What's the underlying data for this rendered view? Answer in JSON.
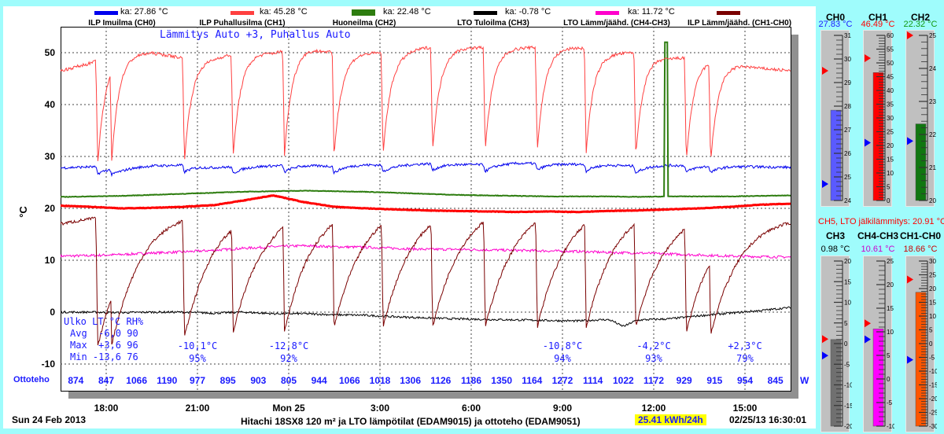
{
  "legend": [
    {
      "name": "ILP Imuilma (CH0)",
      "avg": "ka: 27.86 °C",
      "color": "#0000ee"
    },
    {
      "name": "ILP Puhallusilma (CH1)",
      "avg": "ka: 45.28 °C",
      "color": "#ff4040"
    },
    {
      "name": "Huoneilma (CH2)",
      "avg": "ka: 22.48 °C",
      "color": "#2e7d10"
    },
    {
      "name": "LTO Tuloilma (CH3)",
      "avg": "ka: -0.78 °C",
      "color": "#000000"
    },
    {
      "name": "LTO Lämm/jäähd. (CH4-CH3)",
      "avg": "ka: 11.72 °C",
      "color": "#ff00cc"
    },
    {
      "name": "ILP Lämm/jäähd. (CH1-CH0)",
      "avg": "",
      "color": "#7a0000"
    }
  ],
  "mode_text": "Lämmitys Auto +3, Puhallus Auto",
  "outdoor_stats": {
    "header": "Ulko LT °C RH%",
    "avg": "Avg  -6,0 90",
    "max": "Max  +3,6 96",
    "min": "Min -13,6 76"
  },
  "weather_notes": [
    {
      "hour": 4.5,
      "temp": "-10,1°C",
      "rh": "95%"
    },
    {
      "hour": 7.5,
      "temp": "-12,8°C",
      "rh": "92%"
    },
    {
      "hour": 16.5,
      "temp": "-10,8°C",
      "rh": "94%"
    },
    {
      "hour": 19.5,
      "temp": "-4,2°C",
      "rh": "93%"
    },
    {
      "hour": 22.5,
      "temp": "+2,3°C",
      "rh": "79%"
    }
  ],
  "ottoteho": {
    "label": "Ottoteho",
    "unit": "W",
    "values": [
      "874",
      "847",
      "1066",
      "1190",
      "977",
      "895",
      "903",
      "805",
      "944",
      "1066",
      "1018",
      "1306",
      "1126",
      "1186",
      "1350",
      "1164",
      "1272",
      "1114",
      "1022",
      "1172",
      "929",
      "915",
      "954",
      "845"
    ]
  },
  "footer": {
    "date": "Sun 24 Feb 2013",
    "title": "Hitachi 18SX8 120 m² ja LTO lämpötilat (EDAM9015) ja ottoteho (EDAM9051)",
    "energy": "25.41 kWh/24h",
    "timestamp": "02/25/13 16:30:01"
  },
  "chart_data": {
    "type": "line",
    "ylabel": "°C",
    "ylim": [
      -15,
      55
    ],
    "yticks": [
      "50",
      "40",
      "30",
      "20",
      "10",
      "0",
      "-10"
    ],
    "ytick_values": [
      50,
      40,
      30,
      20,
      10,
      0,
      -10
    ],
    "xlim_hours_from_1630": [
      0,
      24
    ],
    "xticks": [
      {
        "label": "18:00",
        "hour": 1.5
      },
      {
        "label": "21:00",
        "hour": 4.5
      },
      {
        "label": "Mon 25",
        "hour": 7.5
      },
      {
        "label": "3:00",
        "hour": 10.5
      },
      {
        "label": "6:00",
        "hour": 13.5
      },
      {
        "label": "9:00",
        "hour": 16.5
      },
      {
        "label": "12:00",
        "hour": 19.5
      },
      {
        "label": "15:00",
        "hour": 22.5
      }
    ],
    "grid": true,
    "defrost_hours": [
      1.22,
      1.68,
      4.07,
      5.67,
      7.36,
      8.99,
      10.6,
      12.23,
      13.96,
      15.67,
      17.28,
      18.91,
      20.57,
      21.37
    ],
    "ch2_spike": {
      "hour": 19.9,
      "value": 52
    },
    "series": [
      {
        "name": "CH0",
        "color": "#0000ee",
        "values": [
          27.8,
          28.0,
          27.6,
          28.2,
          28.3,
          27.9,
          28.0,
          28.2,
          28.3,
          28.1,
          28.4,
          28.3,
          28.6,
          28.5,
          28.4,
          28.7,
          28.6,
          28.5,
          28.4,
          28.1,
          28.3,
          28.2,
          28.1,
          28.0,
          27.9
        ]
      },
      {
        "name": "CH1",
        "color": "#ff4040",
        "values": [
          46.5,
          48,
          50,
          50,
          49,
          49,
          50,
          50,
          51,
          50,
          50,
          50,
          51,
          51,
          51,
          51,
          51,
          51,
          50,
          50,
          49,
          49,
          48,
          47,
          46.5
        ]
      },
      {
        "name": "CH2",
        "color": "#2e7d10",
        "values": [
          22.2,
          22.3,
          22.4,
          22.6,
          22.8,
          23.0,
          23.2,
          23.3,
          23.4,
          23.3,
          23.2,
          23.0,
          22.8,
          22.6,
          22.5,
          22.4,
          22.3,
          22.3,
          22.3,
          22.2,
          22.3,
          22.3,
          22.3,
          22.4,
          22.5
        ]
      },
      {
        "name": "CH3",
        "color": "#000000",
        "values": [
          0,
          0,
          -0.1,
          0,
          0,
          -0.2,
          0,
          -0.3,
          -0.3,
          -0.5,
          -0.6,
          -0.9,
          -1.1,
          -1.3,
          -1.4,
          -1.5,
          -1.6,
          -1.7,
          -1.4,
          -1.5,
          -1.3,
          -0.7,
          -0.2,
          0.3,
          0.9
        ]
      },
      {
        "name": "CH4-CH3",
        "color": "#ff00cc",
        "values": [
          10.8,
          10.9,
          11.1,
          11.4,
          11.6,
          11.9,
          12.3,
          12.6,
          12.8,
          12.6,
          12.5,
          12.3,
          12.1,
          12.1,
          12.0,
          11.9,
          11.8,
          11.7,
          11.5,
          11.4,
          11.2,
          11.0,
          10.8,
          10.7,
          10.6
        ]
      },
      {
        "name": "CH1-CH0",
        "color": "#7a0000",
        "values": [
          17,
          18,
          19,
          20,
          20,
          21,
          21,
          21,
          22,
          22,
          22,
          22,
          22,
          22,
          22,
          22,
          22,
          22,
          22,
          22,
          21,
          21,
          20,
          19.5,
          19
        ]
      },
      {
        "name": "CH5",
        "color": "#ff0000",
        "values": [
          20.5,
          20.3,
          20.0,
          20.1,
          20.3,
          20.6,
          21.5,
          22.5,
          21.2,
          20.3,
          20.0,
          19.8,
          19.6,
          19.5,
          19.4,
          19.3,
          19.4,
          19.3,
          19.5,
          19.6,
          19.8,
          20.0,
          20.3,
          20.7,
          20.9
        ]
      }
    ]
  },
  "ch5_label": "CH5, LTO jälkilämmitys: 20.91 °C",
  "gauges": [
    {
      "name": "CH0",
      "value_text": "27.83 °C",
      "text_color": "#1a1aff",
      "fill": "#5a5aff",
      "min": 24,
      "max": 31,
      "step": 1,
      "value": 27.83,
      "max_mark": 29.5,
      "min_mark": 24.7
    },
    {
      "name": "CH1",
      "value_text": "46.49 °C",
      "text_color": "#ff0000",
      "fill": "#ff0000",
      "min": 0,
      "max": 60,
      "step": 5,
      "value": 46.49,
      "max_mark": 51.7,
      "min_mark": 21
    },
    {
      "name": "CH2",
      "value_text": "22.32 °C",
      "text_color": "#119911",
      "fill": "#117711",
      "min": 20,
      "max": 25,
      "step": 1,
      "value": 22.32,
      "max_mark": 25,
      "min_mark": 21.8
    },
    {
      "name": "CH3",
      "value_text": "0.98 °C",
      "text_color": "#000000",
      "fill": "#707070",
      "min": -20,
      "max": 20,
      "step": 5,
      "value": 0.98,
      "max_mark": 1.1,
      "min_mark": -2.9
    },
    {
      "name": "CH4-CH3",
      "value_text": "10.61 °C",
      "text_color": "#cc00cc",
      "fill": "#ff00ff",
      "min": -10,
      "max": 25,
      "step": 5,
      "value": 10.61,
      "max_mark": 11.8,
      "min_mark": 8.4
    },
    {
      "name": "CH1-CH0",
      "value_text": "18.66 °C",
      "text_color": "#cc0000",
      "fill": "#ff5500",
      "min": -30,
      "max": 30,
      "step": 5,
      "value": 18.66,
      "max_mark": 23.3,
      "min_mark": -5.9
    }
  ]
}
